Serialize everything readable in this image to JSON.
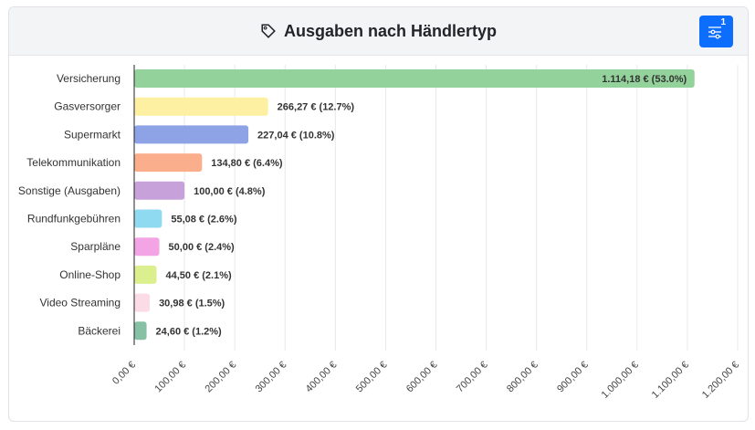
{
  "header": {
    "title": "Ausgaben nach Händlertyp",
    "icon": "tag-icon",
    "filter_icon": "sliders-icon",
    "filter_count": "1",
    "accent": "#0d6efd"
  },
  "chart_data": {
    "type": "bar",
    "orientation": "horizontal",
    "categories": [
      "Versicherung",
      "Gasversorger",
      "Supermarkt",
      "Telekommunikation",
      "Sonstige (Ausgaben)",
      "Rundfunkgebühren",
      "Sparpläne",
      "Online-Shop",
      "Video Streaming",
      "Bäckerei"
    ],
    "values": [
      1114.18,
      266.27,
      227.04,
      134.8,
      100.0,
      55.08,
      50.0,
      44.5,
      30.98,
      24.6
    ],
    "data_labels": [
      "1.114,18 € (53.0%)",
      "266,27 € (12.7%)",
      "227,04 € (10.8%)",
      "134,80 € (6.4%)",
      "100,00 € (4.8%)",
      "55,08 € (2.6%)",
      "50,00 € (2.4%)",
      "44,50 € (2.1%)",
      "30,98 € (1.5%)",
      "24,60 € (1.2%)"
    ],
    "colors": [
      "#93d39b",
      "#fdf0a2",
      "#8ea2e6",
      "#fbae8c",
      "#c6a1da",
      "#8fdaf1",
      "#f3a4e5",
      "#dcef8f",
      "#fbdce6",
      "#86c1a5"
    ],
    "xlim": [
      0,
      1200
    ],
    "xticks": [
      0,
      100,
      200,
      300,
      400,
      500,
      600,
      700,
      800,
      900,
      1000,
      1100,
      1200
    ],
    "xtick_labels": [
      "0,00 €",
      "100,00 €",
      "200,00 €",
      "300,00 €",
      "400,00 €",
      "500,00 €",
      "600,00 €",
      "700,00 €",
      "800,00 €",
      "900,00 €",
      "1.000,00 €",
      "1.100,00 €",
      "1.200,00 €"
    ],
    "grid": true
  }
}
